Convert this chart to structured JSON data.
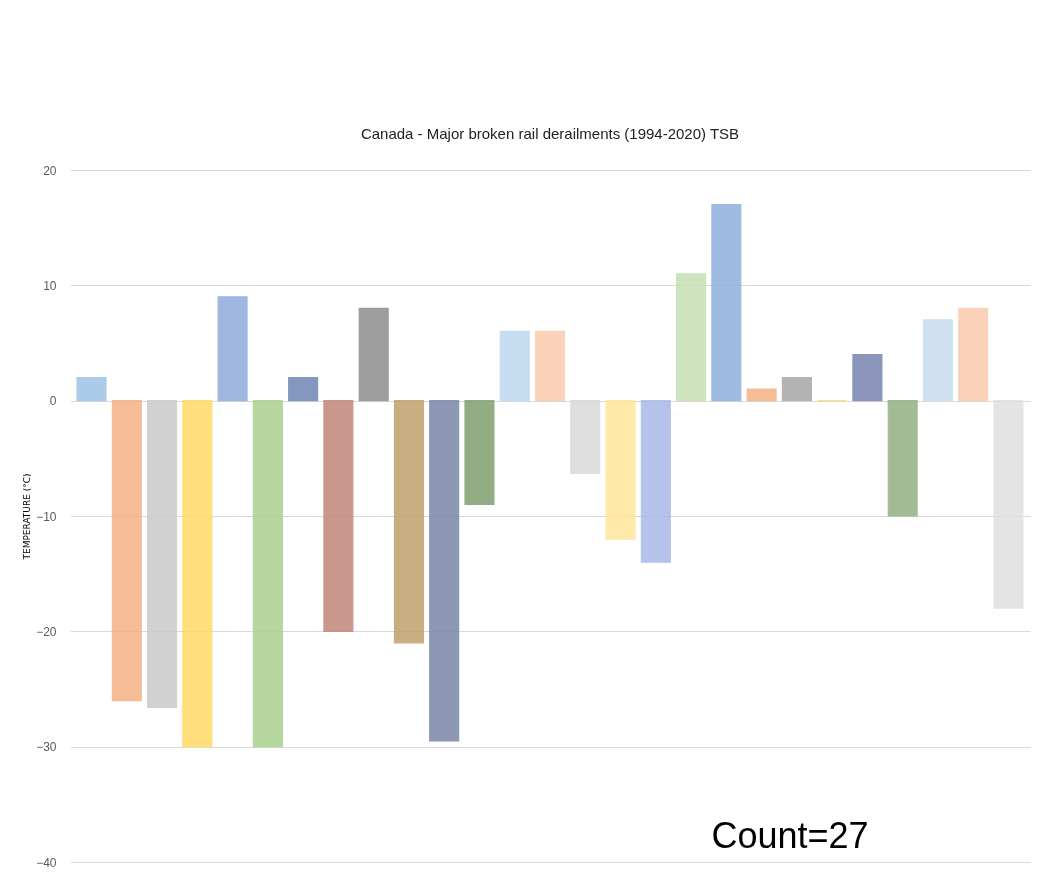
{
  "chart_data": {
    "type": "bar",
    "title": "Canada - Major broken rail derailments (1994-2020) TSB",
    "ylabel": "TEMPERATURE (°C)",
    "categories": [
      null,
      null,
      null,
      null,
      null,
      null,
      null,
      null,
      null,
      null,
      null,
      null,
      null,
      null,
      null,
      null,
      null,
      null,
      null,
      null,
      null,
      null,
      null,
      null,
      null,
      null,
      null
    ],
    "values": [
      2,
      -26,
      -26.6,
      -30,
      9,
      -30,
      2,
      -20,
      8,
      -21,
      -29.5,
      -9,
      6,
      6,
      -6.3,
      -12,
      -14,
      11,
      17,
      1,
      2,
      0,
      4,
      -10,
      7,
      8,
      -18
    ],
    "colors": [
      "#9dc3e6",
      "#f4b183",
      "#c9c9c9",
      "#ffd966",
      "#8faadc",
      "#a9d18e",
      "#6f87b5",
      "#c0867a",
      "#8c8c8c",
      "#bfa06c",
      "#7a86a8",
      "#7f9f6f",
      "#bdd7ee",
      "#f8cbad",
      "#d9d9d9",
      "#ffe699",
      "#a9b9e8",
      "#c5e0b4",
      "#8fb0e0",
      "#f4b183",
      "#a6a6a6",
      "#ffd966",
      "#7783b0",
      "#93b083",
      "#c6dbef",
      "#f8cbad",
      "#e0e0e0"
    ],
    "ylim": [
      -40,
      20
    ],
    "yticks": [
      -40,
      -30,
      -20,
      -10,
      0,
      10,
      20
    ],
    "grid": "y",
    "annotations": [
      "Count=27"
    ]
  }
}
